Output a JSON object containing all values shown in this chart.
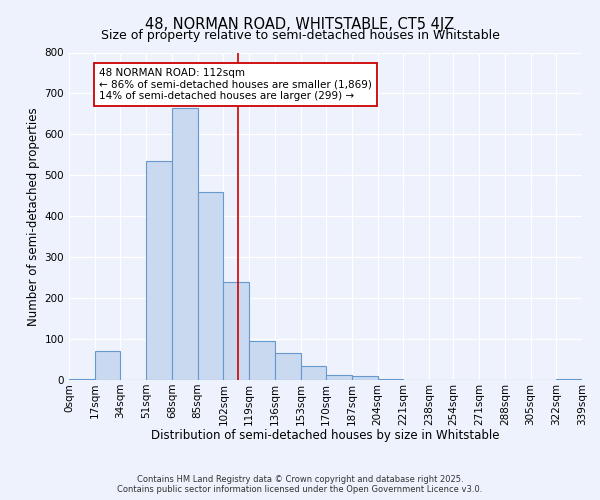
{
  "title": "48, NORMAN ROAD, WHITSTABLE, CT5 4JZ",
  "subtitle": "Size of property relative to semi-detached houses in Whitstable",
  "xlabel": "Distribution of semi-detached houses by size in Whitstable",
  "ylabel": "Number of semi-detached properties",
  "bin_labels": [
    "0sqm",
    "17sqm",
    "34sqm",
    "51sqm",
    "68sqm",
    "85sqm",
    "102sqm",
    "119sqm",
    "136sqm",
    "153sqm",
    "170sqm",
    "187sqm",
    "204sqm",
    "221sqm",
    "238sqm",
    "254sqm",
    "271sqm",
    "288sqm",
    "305sqm",
    "322sqm",
    "339sqm"
  ],
  "bin_edges": [
    0,
    17,
    34,
    51,
    68,
    85,
    102,
    119,
    136,
    153,
    170,
    187,
    204,
    221,
    238,
    254,
    271,
    288,
    305,
    322,
    339
  ],
  "bar_values": [
    2,
    70,
    0,
    535,
    665,
    460,
    240,
    95,
    65,
    33,
    12,
    10,
    3,
    0,
    0,
    0,
    0,
    0,
    0,
    2
  ],
  "bar_color": "#c9d9f0",
  "bar_edge_color": "#6699cc",
  "property_size": 112,
  "property_line_color": "#cc0000",
  "annotation_text": "48 NORMAN ROAD: 112sqm\n← 86% of semi-detached houses are smaller (1,869)\n14% of semi-detached houses are larger (299) →",
  "annotation_box_color": "#ffffff",
  "annotation_box_edge_color": "#cc0000",
  "ylim": [
    0,
    800
  ],
  "yticks": [
    0,
    100,
    200,
    300,
    400,
    500,
    600,
    700,
    800
  ],
  "background_color": "#eef2fc",
  "grid_color": "#ffffff",
  "footer_line1": "Contains HM Land Registry data © Crown copyright and database right 2025.",
  "footer_line2": "Contains public sector information licensed under the Open Government Licence v3.0.",
  "title_fontsize": 10.5,
  "subtitle_fontsize": 9,
  "axis_label_fontsize": 8.5,
  "tick_fontsize": 7.5,
  "annotation_fontsize": 7.5
}
